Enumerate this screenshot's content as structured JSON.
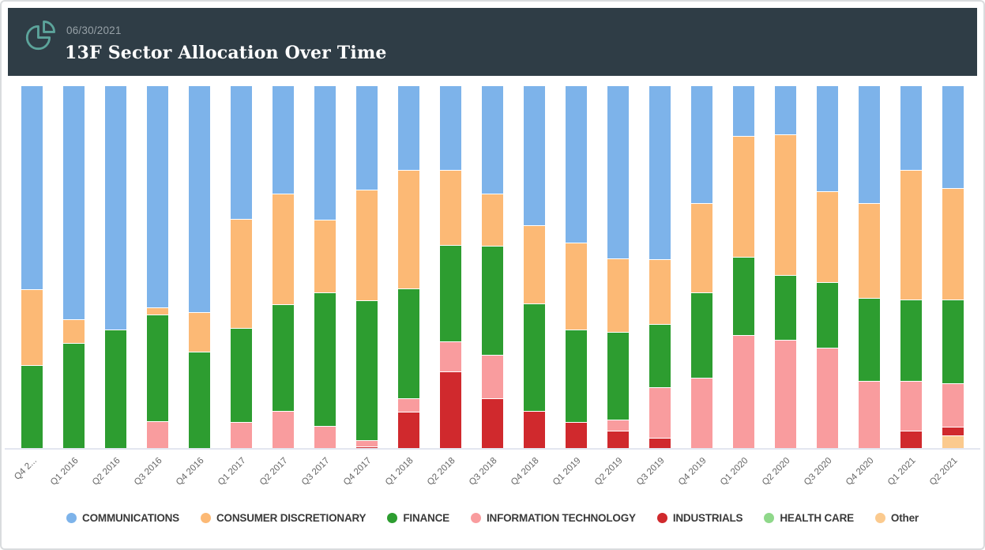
{
  "header": {
    "date": "06/30/2021",
    "title": "13F Sector Allocation Over Time",
    "icon": "pie-chart-icon",
    "background": "#2f3d46",
    "icon_color": "#5ca49b",
    "date_color": "#97a1a7",
    "title_color": "#ffffff"
  },
  "chart_data": {
    "type": "bar",
    "stacked": true,
    "stacking": "percent",
    "title": "13F Sector Allocation Over Time",
    "xlabel": "",
    "ylabel": "",
    "ylim": [
      0,
      100
    ],
    "grid": false,
    "legend_position": "bottom",
    "categories": [
      "Q4 2...",
      "Q1 2016",
      "Q2 2016",
      "Q3 2016",
      "Q4 2016",
      "Q1 2017",
      "Q2 2017",
      "Q3 2017",
      "Q4 2017",
      "Q1 2018",
      "Q2 2018",
      "Q3 2018",
      "Q4 2018",
      "Q1 2019",
      "Q2 2019",
      "Q3 2019",
      "Q4 2019",
      "Q1 2020",
      "Q2 2020",
      "Q3 2020",
      "Q4 2020",
      "Q1 2021",
      "Q2 2021"
    ],
    "series": [
      {
        "name": "COMMUNICATIONS",
        "color": "#7db3ea",
        "values": [
          56.0,
          64.3,
          67.1,
          61.0,
          62.3,
          36.6,
          29.6,
          36.8,
          28.5,
          23.1,
          23.1,
          29.6,
          38.3,
          43.1,
          47.4,
          47.7,
          32.2,
          13.7,
          13.3,
          29.0,
          32.2,
          23.1,
          28.1
        ]
      },
      {
        "name": "CONSUMER DISCRETIONARY",
        "color": "#fcb975",
        "values": [
          20.9,
          6.5,
          0,
          2.0,
          10.9,
          30.1,
          30.5,
          20.0,
          30.5,
          32.7,
          20.7,
          14.4,
          21.6,
          24.0,
          20.3,
          17.9,
          24.6,
          33.3,
          38.7,
          25.1,
          26.1,
          35.8,
          30.7
        ]
      },
      {
        "name": "FINANCE",
        "color": "#2d9d30",
        "values": [
          23.1,
          29.2,
          32.9,
          29.4,
          26.8,
          25.9,
          29.4,
          36.8,
          38.6,
          30.3,
          26.5,
          30.1,
          29.6,
          25.5,
          24.2,
          17.4,
          23.7,
          21.6,
          17.9,
          18.1,
          22.9,
          22.4,
          23.1
        ]
      },
      {
        "name": "INFORMATION TECHNOLOGY",
        "color": "#f99c9e",
        "values": [
          0,
          0,
          0,
          7.6,
          0,
          7.4,
          10.5,
          6.4,
          1.7,
          3.7,
          8.3,
          12.0,
          0,
          0,
          3.1,
          13.9,
          19.5,
          31.4,
          30.1,
          27.8,
          18.8,
          13.7,
          12.0
        ]
      },
      {
        "name": "INDUSTRIALS",
        "color": "#d0292d",
        "values": [
          0,
          0,
          0,
          0,
          0,
          0,
          0,
          0,
          0.7,
          10.2,
          21.4,
          13.9,
          10.5,
          7.4,
          5.0,
          3.1,
          0,
          0,
          0,
          0,
          0,
          5.0,
          2.4
        ]
      },
      {
        "name": "HEALTH CARE",
        "color": "#8fd88a",
        "values": [
          0,
          0,
          0,
          0,
          0,
          0,
          0,
          0,
          0,
          0,
          0,
          0,
          0,
          0,
          0,
          0,
          0,
          0,
          0,
          0,
          0,
          0,
          0
        ]
      },
      {
        "name": "Other",
        "color": "#fbca8e",
        "values": [
          0,
          0,
          0,
          0,
          0,
          0,
          0,
          0,
          0,
          0,
          0,
          0,
          0,
          0,
          0,
          0,
          0,
          0,
          0,
          0,
          0,
          0,
          3.7
        ]
      }
    ]
  },
  "style": {
    "axis_label_color": "#666666",
    "legend_text_color": "#3a3a3a",
    "baseline_color": "#e3e6f0",
    "card_border_color": "#d9dcde"
  }
}
